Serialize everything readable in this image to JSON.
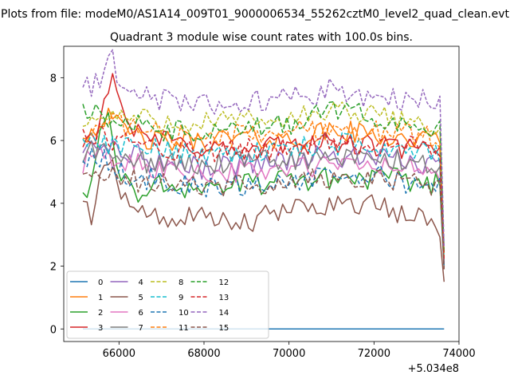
{
  "chart_data": {
    "type": "line",
    "suptitle": "Plots from file: modeM0/AS1A14_009T01_9000006534_55262cztM0_level2_quad_clean.evt",
    "title": "Quadrant 3 module wise count rates with 100.0s bins.",
    "xlabel": "",
    "ylabel": "",
    "x_offset_label": "+5.034e8",
    "xlim": [
      64700,
      74000
    ],
    "ylim": [
      -0.4,
      9.0
    ],
    "xticks": [
      66000,
      68000,
      70000,
      72000,
      74000
    ],
    "xtick_labels": [
      "66000",
      "68000",
      "70000",
      "72000",
      "74000"
    ],
    "yticks": [
      0,
      2,
      4,
      6,
      8
    ],
    "ytick_labels": [
      "0",
      "2",
      "4",
      "6",
      "8"
    ],
    "x_start": 65150,
    "x_step": 100,
    "n_points": 86,
    "legend_position": "lower-left",
    "series": [
      {
        "name": "0",
        "color": "#1f77b4",
        "dashed": false,
        "keypoints": [
          [
            65150,
            0
          ],
          [
            73650,
            0
          ]
        ]
      },
      {
        "name": "1",
        "color": "#ff7f0e",
        "dashed": false,
        "keypoints": [
          [
            65150,
            6.2
          ],
          [
            65500,
            6.4
          ],
          [
            65800,
            7.2
          ],
          [
            66000,
            6.3
          ],
          [
            67000,
            5.9
          ],
          [
            68000,
            6.0
          ],
          [
            69000,
            6.1
          ],
          [
            70000,
            6.0
          ],
          [
            71000,
            6.3
          ],
          [
            72000,
            6.2
          ],
          [
            73000,
            6.0
          ],
          [
            73550,
            6.0
          ],
          [
            73650,
            2.0
          ]
        ]
      },
      {
        "name": "2",
        "color": "#2ca02c",
        "dashed": false,
        "keypoints": [
          [
            65150,
            4.6
          ],
          [
            65300,
            4.4
          ],
          [
            65500,
            5.6
          ],
          [
            65700,
            7.0
          ],
          [
            66000,
            5.2
          ],
          [
            66300,
            4.2
          ],
          [
            67000,
            4.6
          ],
          [
            68000,
            4.5
          ],
          [
            69000,
            4.6
          ],
          [
            70000,
            4.7
          ],
          [
            71000,
            4.8
          ],
          [
            72000,
            4.8
          ],
          [
            73000,
            4.7
          ],
          [
            73550,
            4.6
          ],
          [
            73650,
            1.9
          ]
        ]
      },
      {
        "name": "3",
        "color": "#d62728",
        "dashed": false,
        "keypoints": [
          [
            65150,
            5.9
          ],
          [
            65500,
            6.4
          ],
          [
            65850,
            8.4
          ],
          [
            66000,
            7.6
          ],
          [
            66300,
            6.2
          ],
          [
            67000,
            6.0
          ],
          [
            68000,
            5.8
          ],
          [
            69000,
            5.6
          ],
          [
            70000,
            5.9
          ],
          [
            71000,
            5.9
          ],
          [
            72000,
            5.8
          ],
          [
            73000,
            5.7
          ],
          [
            73550,
            5.6
          ],
          [
            73650,
            1.9
          ]
        ]
      },
      {
        "name": "4",
        "color": "#9467bd",
        "dashed": false,
        "keypoints": [
          [
            65150,
            5.8
          ],
          [
            65500,
            6.0
          ],
          [
            66000,
            5.7
          ],
          [
            67000,
            5.3
          ],
          [
            68000,
            5.1
          ],
          [
            69000,
            5.3
          ],
          [
            70000,
            5.4
          ],
          [
            71000,
            5.5
          ],
          [
            72000,
            5.4
          ],
          [
            73000,
            5.3
          ],
          [
            73550,
            5.2
          ],
          [
            73650,
            2.0
          ]
        ]
      },
      {
        "name": "5",
        "color": "#8c564b",
        "dashed": false,
        "keypoints": [
          [
            65150,
            4.1
          ],
          [
            65350,
            3.6
          ],
          [
            65550,
            5.0
          ],
          [
            65850,
            5.6
          ],
          [
            66100,
            4.2
          ],
          [
            66500,
            3.7
          ],
          [
            67000,
            3.5
          ],
          [
            67500,
            3.5
          ],
          [
            68000,
            3.5
          ],
          [
            68500,
            3.4
          ],
          [
            69000,
            3.3
          ],
          [
            69500,
            3.6
          ],
          [
            70000,
            3.8
          ],
          [
            71000,
            4.0
          ],
          [
            72000,
            4.0
          ],
          [
            72500,
            3.6
          ],
          [
            73000,
            3.6
          ],
          [
            73500,
            3.3
          ],
          [
            73600,
            3.2
          ],
          [
            73650,
            1.5
          ]
        ]
      },
      {
        "name": "6",
        "color": "#e377c2",
        "dashed": false,
        "keypoints": [
          [
            65150,
            5.3
          ],
          [
            65500,
            5.6
          ],
          [
            66000,
            5.3
          ],
          [
            67000,
            5.1
          ],
          [
            68000,
            5.0
          ],
          [
            69000,
            5.0
          ],
          [
            70000,
            5.1
          ],
          [
            71000,
            5.2
          ],
          [
            72000,
            5.2
          ],
          [
            73000,
            5.1
          ],
          [
            73550,
            5.0
          ],
          [
            73650,
            2.1
          ]
        ]
      },
      {
        "name": "7",
        "color": "#7f7f7f",
        "dashed": false,
        "keypoints": [
          [
            65150,
            5.5
          ],
          [
            65500,
            5.7
          ],
          [
            66000,
            5.4
          ],
          [
            67000,
            5.3
          ],
          [
            68000,
            5.2
          ],
          [
            69000,
            5.3
          ],
          [
            70000,
            5.4
          ],
          [
            71000,
            5.4
          ],
          [
            72000,
            5.4
          ],
          [
            73000,
            5.3
          ],
          [
            73550,
            5.2
          ],
          [
            73650,
            2.0
          ]
        ]
      },
      {
        "name": "8",
        "color": "#bcbd22",
        "dashed": true,
        "keypoints": [
          [
            65150,
            6.4
          ],
          [
            65500,
            6.7
          ],
          [
            66000,
            6.8
          ],
          [
            67000,
            6.6
          ],
          [
            68000,
            6.6
          ],
          [
            69000,
            6.6
          ],
          [
            70000,
            6.7
          ],
          [
            71000,
            6.9
          ],
          [
            72000,
            6.8
          ],
          [
            73000,
            6.6
          ],
          [
            73550,
            6.5
          ],
          [
            73650,
            2.4
          ]
        ]
      },
      {
        "name": "9",
        "color": "#17becf",
        "dashed": true,
        "keypoints": [
          [
            65150,
            5.7
          ],
          [
            65500,
            6.0
          ],
          [
            66000,
            5.8
          ],
          [
            67000,
            5.7
          ],
          [
            68000,
            5.6
          ],
          [
            69000,
            5.6
          ],
          [
            70000,
            5.7
          ],
          [
            71000,
            5.9
          ],
          [
            72000,
            5.8
          ],
          [
            73000,
            5.7
          ],
          [
            73550,
            5.6
          ],
          [
            73650,
            2.2
          ]
        ]
      },
      {
        "name": "10",
        "color": "#1f77b4",
        "dashed": true,
        "keypoints": [
          [
            65150,
            5.2
          ],
          [
            65500,
            5.5
          ],
          [
            66000,
            5.0
          ],
          [
            67000,
            4.7
          ],
          [
            68000,
            4.5
          ],
          [
            69000,
            4.6
          ],
          [
            70000,
            4.7
          ],
          [
            71000,
            4.8
          ],
          [
            72000,
            4.9
          ],
          [
            73000,
            4.6
          ],
          [
            73550,
            4.5
          ],
          [
            73650,
            2.0
          ]
        ]
      },
      {
        "name": "11",
        "color": "#ff7f0e",
        "dashed": true,
        "keypoints": [
          [
            65150,
            6.3
          ],
          [
            65500,
            6.6
          ],
          [
            66000,
            6.5
          ],
          [
            67000,
            6.2
          ],
          [
            68000,
            6.1
          ],
          [
            69000,
            6.2
          ],
          [
            70000,
            6.3
          ],
          [
            71000,
            6.4
          ],
          [
            72000,
            6.3
          ],
          [
            73000,
            6.2
          ],
          [
            73550,
            6.1
          ],
          [
            73650,
            2.3
          ]
        ]
      },
      {
        "name": "12",
        "color": "#2ca02c",
        "dashed": true,
        "keypoints": [
          [
            65150,
            6.9
          ],
          [
            65500,
            7.0
          ],
          [
            66000,
            6.6
          ],
          [
            67000,
            6.3
          ],
          [
            68000,
            6.2
          ],
          [
            69000,
            6.3
          ],
          [
            70000,
            6.5
          ],
          [
            71000,
            7.0
          ],
          [
            72000,
            6.7
          ],
          [
            73000,
            6.5
          ],
          [
            73550,
            6.4
          ],
          [
            73650,
            2.4
          ]
        ]
      },
      {
        "name": "13",
        "color": "#d62728",
        "dashed": true,
        "keypoints": [
          [
            65150,
            6.0
          ],
          [
            65500,
            6.2
          ],
          [
            66000,
            6.0
          ],
          [
            67000,
            5.7
          ],
          [
            68000,
            5.6
          ],
          [
            69000,
            5.7
          ],
          [
            70000,
            5.8
          ],
          [
            71000,
            5.9
          ],
          [
            72000,
            5.9
          ],
          [
            73000,
            5.8
          ],
          [
            73550,
            5.7
          ],
          [
            73650,
            2.2
          ]
        ]
      },
      {
        "name": "14",
        "color": "#9467bd",
        "dashed": true,
        "keypoints": [
          [
            65150,
            7.6
          ],
          [
            65500,
            7.9
          ],
          [
            65850,
            8.6
          ],
          [
            66000,
            7.5
          ],
          [
            67000,
            7.3
          ],
          [
            68000,
            7.2
          ],
          [
            69000,
            7.2
          ],
          [
            70000,
            7.4
          ],
          [
            71000,
            7.6
          ],
          [
            72000,
            7.4
          ],
          [
            73000,
            7.3
          ],
          [
            73550,
            7.2
          ],
          [
            73650,
            2.6
          ]
        ]
      },
      {
        "name": "15",
        "color": "#8c564b",
        "dashed": true,
        "keypoints": [
          [
            65150,
            4.8
          ],
          [
            65500,
            5.1
          ],
          [
            66000,
            4.8
          ],
          [
            67000,
            4.6
          ],
          [
            68000,
            4.5
          ],
          [
            69000,
            4.6
          ],
          [
            70000,
            4.7
          ],
          [
            71000,
            4.8
          ],
          [
            72000,
            4.8
          ],
          [
            73000,
            4.6
          ],
          [
            73550,
            4.5
          ],
          [
            73650,
            1.9
          ]
        ]
      }
    ]
  }
}
